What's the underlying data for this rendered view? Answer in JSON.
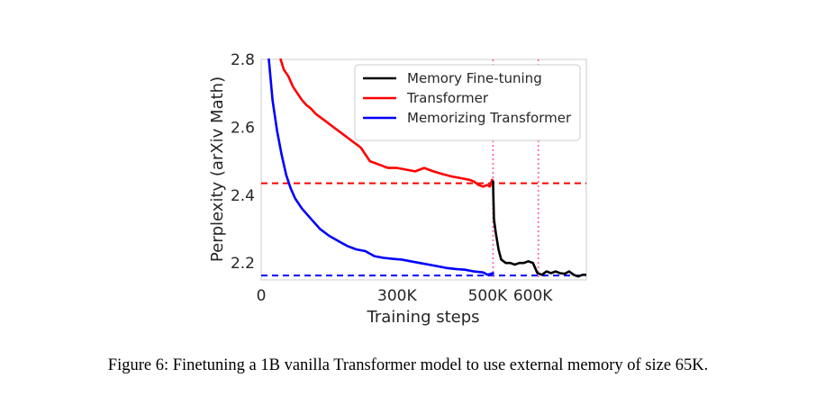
{
  "chart_data": {
    "type": "line",
    "title": "",
    "xlabel": "Training steps",
    "ylabel": "Perplexity (arXiv Math)",
    "xlim": [
      0,
      718000
    ],
    "ylim": [
      2.15,
      2.8
    ],
    "xticks": [
      {
        "value": 0,
        "label": "0"
      },
      {
        "value": 300000,
        "label": "300K"
      },
      {
        "value": 500000,
        "label": "500K"
      },
      {
        "value": 600000,
        "label": "600K"
      }
    ],
    "yticks": [
      {
        "value": 2.2,
        "label": "2.2"
      },
      {
        "value": 2.4,
        "label": "2.4"
      },
      {
        "value": 2.6,
        "label": "2.6"
      },
      {
        "value": 2.8,
        "label": "2.8"
      }
    ],
    "legend_position": "top-right",
    "series": [
      {
        "name": "Memory Fine-tuning",
        "color": "#000000",
        "x": [
          512000,
          514000,
          518000,
          524000,
          530000,
          540000,
          550000,
          560000,
          570000,
          580000,
          590000,
          600000,
          605000,
          610000,
          620000,
          630000,
          640000,
          650000,
          660000,
          670000,
          680000,
          690000,
          700000,
          710000,
          718000
        ],
        "y": [
          2.44,
          2.33,
          2.29,
          2.24,
          2.21,
          2.2,
          2.2,
          2.195,
          2.2,
          2.2,
          2.205,
          2.2,
          2.185,
          2.17,
          2.165,
          2.175,
          2.17,
          2.175,
          2.17,
          2.168,
          2.175,
          2.165,
          2.16,
          2.165,
          2.165
        ]
      },
      {
        "name": "Transformer",
        "color": "#ff0000",
        "x": [
          43000,
          50000,
          60000,
          70000,
          80000,
          90000,
          100000,
          110000,
          120000,
          140000,
          160000,
          180000,
          200000,
          220000,
          240000,
          260000,
          280000,
          300000,
          320000,
          340000,
          360000,
          380000,
          400000,
          420000,
          440000,
          460000,
          470000,
          480000,
          490000,
          500000,
          505000,
          510000,
          512000
        ],
        "y": [
          2.8,
          2.77,
          2.75,
          2.72,
          2.7,
          2.68,
          2.665,
          2.655,
          2.64,
          2.62,
          2.6,
          2.58,
          2.56,
          2.54,
          2.5,
          2.49,
          2.48,
          2.48,
          2.475,
          2.47,
          2.48,
          2.47,
          2.462,
          2.455,
          2.45,
          2.445,
          2.44,
          2.43,
          2.425,
          2.43,
          2.425,
          2.445,
          2.44
        ]
      },
      {
        "name": "Memorizing Transformer",
        "color": "#0000ff",
        "x": [
          17000,
          25000,
          35000,
          45000,
          55000,
          65000,
          75000,
          90000,
          110000,
          130000,
          150000,
          170000,
          190000,
          210000,
          230000,
          250000,
          270000,
          290000,
          310000,
          330000,
          350000,
          370000,
          390000,
          410000,
          430000,
          450000,
          470000,
          490000,
          500000,
          512000
        ],
        "y": [
          2.8,
          2.68,
          2.59,
          2.52,
          2.46,
          2.42,
          2.39,
          2.36,
          2.33,
          2.3,
          2.28,
          2.265,
          2.25,
          2.24,
          2.235,
          2.22,
          2.215,
          2.212,
          2.21,
          2.205,
          2.2,
          2.195,
          2.19,
          2.185,
          2.182,
          2.18,
          2.175,
          2.172,
          2.165,
          2.17
        ]
      }
    ],
    "reference_lines": [
      {
        "orientation": "horizontal",
        "y": 2.435,
        "color": "#ff0000",
        "style": "dashed"
      },
      {
        "orientation": "horizontal",
        "y": 2.163,
        "color": "#0000ff",
        "style": "dashed"
      },
      {
        "orientation": "vertical",
        "x": 512000,
        "color": "#ff69b4",
        "style": "dotted"
      },
      {
        "orientation": "vertical",
        "x": 612000,
        "color": "#ff69b4",
        "style": "dotted"
      }
    ]
  },
  "caption": "Figure 6: Finetuning a 1B vanilla Transformer model to use external memory of size 65K."
}
